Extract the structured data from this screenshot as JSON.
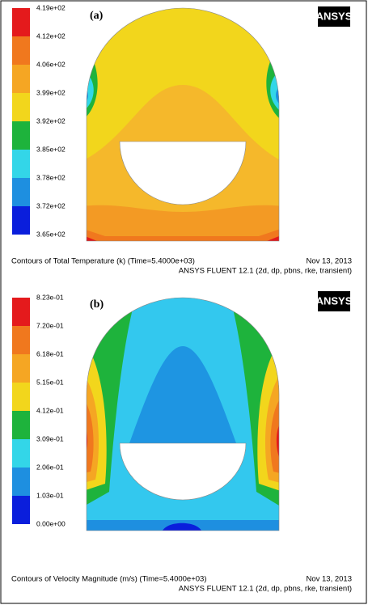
{
  "panels": [
    {
      "label": "(a)",
      "logo": "ANSYS",
      "colorbar_labels": [
        "4.19e+02",
        "4.12e+02",
        "4.06e+02",
        "3.99e+02",
        "3.92e+02",
        "3.85e+02",
        "3.78e+02",
        "3.72e+02",
        "3.65e+02"
      ],
      "caption": "Contours of Total Temperature (k)  (Time=5.4000e+03)",
      "date": "Nov 13, 2013",
      "solver": "ANSYS FLUENT 12.1 (2d, dp, pbns, rke, transient)"
    },
    {
      "label": "(b)",
      "logo": "ANSYS",
      "colorbar_labels": [
        "8.23e-01",
        "7.20e-01",
        "6.18e-01",
        "5.15e-01",
        "4.12e-01",
        "3.09e-01",
        "2.06e-01",
        "1.03e-01",
        "0.00e+00"
      ],
      "caption": "Contours of Velocity Magnitude (m/s)  (Time=5.4000e+03)",
      "date": "Nov 13, 2013",
      "solver": "ANSYS FLUENT 12.1 (2d, dp, pbns, rke, transient)"
    }
  ]
}
